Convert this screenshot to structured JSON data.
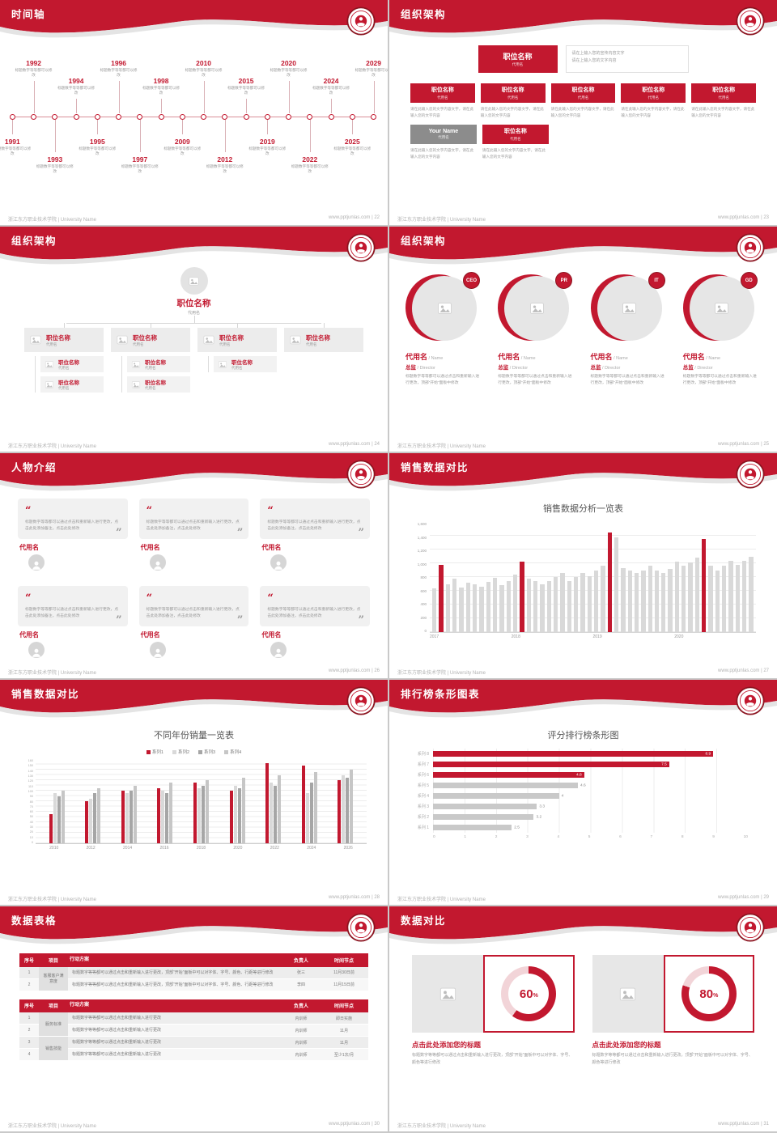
{
  "footer": {
    "left": "浙江东方职业技术学院 | University Name",
    "site": "www.pptjunlas.com",
    "sep": " | "
  },
  "theme": {
    "red": "#c2182f",
    "dark_red": "#8c1420",
    "gray_bar": "#c9c9c9",
    "light_gray": "#ececec"
  },
  "slides": {
    "timeline": {
      "title": "时间轴",
      "page": "22",
      "item_desc": "标题数字等等都可以修改",
      "items": [
        {
          "year": "1991",
          "side": "bottom",
          "far": false
        },
        {
          "year": "1992",
          "side": "top",
          "far": true
        },
        {
          "year": "1993",
          "side": "bottom",
          "far": true
        },
        {
          "year": "1994",
          "side": "top",
          "far": false
        },
        {
          "year": "1995",
          "side": "bottom",
          "far": false
        },
        {
          "year": "1996",
          "side": "top",
          "far": true
        },
        {
          "year": "1997",
          "side": "bottom",
          "far": true
        },
        {
          "year": "1998",
          "side": "top",
          "far": false
        },
        {
          "year": "2009",
          "side": "bottom",
          "far": false
        },
        {
          "year": "2010",
          "side": "top",
          "far": true
        },
        {
          "year": "2012",
          "side": "bottom",
          "far": true
        },
        {
          "year": "2015",
          "side": "top",
          "far": false
        },
        {
          "year": "2019",
          "side": "bottom",
          "far": false
        },
        {
          "year": "2020",
          "side": "top",
          "far": true
        },
        {
          "year": "2022",
          "side": "bottom",
          "far": true
        },
        {
          "year": "2024",
          "side": "top",
          "far": false
        },
        {
          "year": "2025",
          "side": "bottom",
          "far": false
        },
        {
          "year": "2029",
          "side": "top",
          "far": true
        }
      ]
    },
    "org_a": {
      "title": "组织架构",
      "page": "23",
      "head": {
        "title": "职位名称",
        "sub": "代用名"
      },
      "head_note": "请在上输入您的宣传内容文字\n请在上输入您的文字内容",
      "col_text": "请在此输入您的文字内容文字，请在此输入您的文字内容",
      "cols": [
        {
          "title": "职位名称",
          "sub": "代用名"
        },
        {
          "title": "职位名称",
          "sub": "代用名"
        },
        {
          "title": "职位名称",
          "sub": "代用名"
        },
        {
          "title": "职位名称",
          "sub": "代用名"
        },
        {
          "title": "职位名称",
          "sub": "代用名"
        }
      ],
      "extra": [
        {
          "title": "Your Name",
          "sub": "代用名",
          "variant": "gray"
        },
        {
          "title": "职位名称",
          "sub": "代用名",
          "variant": "red"
        }
      ]
    },
    "org_b": {
      "title": "组织架构",
      "page": "24",
      "root": {
        "title": "职位名称",
        "sub": "代用名"
      },
      "child_sub": "代用名",
      "boxes": [
        {
          "title": "职位名称",
          "sub": "代用名",
          "children": [
            "职位名称",
            "职位名称"
          ]
        },
        {
          "title": "职位名称",
          "sub": "代用名",
          "children": [
            "职位名称",
            "职位名称"
          ]
        },
        {
          "title": "职位名称",
          "sub": "代用名",
          "children": [
            "职位名称"
          ]
        },
        {
          "title": "职位名称",
          "sub": "代用名",
          "children": []
        }
      ]
    },
    "org_c": {
      "title": "组织架构",
      "page": "25",
      "desc": "标题数字等等都可以通过点击和重新输入进行更改，顶部“开始”面板中修改",
      "roles": [
        {
          "badge": "CEO",
          "name": "代用名",
          "name_en": " / Name",
          "role": "总监",
          "role_en": " / Director"
        },
        {
          "badge": "PR",
          "name": "代用名",
          "name_en": " / Name",
          "role": "总监",
          "role_en": " / Director"
        },
        {
          "badge": "IT",
          "name": "代用名",
          "name_en": " / Name",
          "role": "总监",
          "role_en": " / Director"
        },
        {
          "badge": "GD",
          "name": "代用名",
          "name_en": " / Name",
          "role": "总监",
          "role_en": " / Director"
        }
      ]
    },
    "people": {
      "title": "人物介绍",
      "page": "26",
      "quote": "标题数字等等都可以通过点击和重新输入进行更改，点击此处添加备注，点击此处修改",
      "cards": [
        {
          "name": "代用名"
        },
        {
          "name": "代用名"
        },
        {
          "name": "代用名"
        },
        {
          "name": "代用名"
        },
        {
          "name": "代用名"
        },
        {
          "name": "代用名"
        }
      ]
    },
    "sales_a": {
      "title": "销售数据对比",
      "page": "27",
      "chart_ref": 0
    },
    "sales_b": {
      "title": "销售数据对比",
      "page": "28",
      "chart_ref": 1
    },
    "ranking": {
      "title": "排行榜条形图表",
      "page": "29",
      "chart_ref": 2
    },
    "tables": {
      "title": "数据表格",
      "page": "30",
      "table1": {
        "columns": [
          "序号",
          "项目",
          "行动方案",
          "负责人",
          "时间节点"
        ],
        "rows": [
          {
            "no": "1",
            "item": "客服客户满意度",
            "item_span": 2,
            "plan": "标题数字等等都可以通过点击和重新输入进行更改，顶部“开始”面板中可以对字体、字号、颜色、行距等进行修改",
            "owner": "张三",
            "due": "11月30日前"
          },
          {
            "no": "2",
            "plan": "标题数字等等都可以通过点击和重新输入进行更改，顶部“开始”面板中可以对字体、字号、颜色、行距等进行修改",
            "owner": "李四",
            "due": "11月15日前"
          }
        ]
      },
      "table2": {
        "columns": [
          "序号",
          "项目",
          "行动方案",
          "负责人",
          "时间节点"
        ],
        "rows": [
          {
            "no": "1",
            "item": "服务标准",
            "item_span": 2,
            "plan": "标题数字等等都可以通过点击和重新输入进行更改",
            "owner": "内训师",
            "due": "即日实施"
          },
          {
            "no": "2",
            "plan": "标题数字等等都可以通过点击和重新输入进行更改",
            "owner": "内训师",
            "due": "11月"
          },
          {
            "no": "3",
            "item": "销售技能",
            "item_span": 2,
            "plan": "标题数字等等都可以通过点击和重新输入进行更改",
            "owner": "内训师",
            "due": "11月"
          },
          {
            "no": "4",
            "plan": "标题数字等等都可以通过点击和重新输入进行更改",
            "owner": "内训师",
            "due": "至少1次/月"
          }
        ]
      }
    },
    "compare": {
      "title": "数据对比",
      "page": "31",
      "panels": [
        {
          "percent": 60,
          "heading": "点击此处添加您的标题",
          "body": "标题数字等等都可以通过点击和重新输入进行更改，顶部“开始”面板中可以对字体、字号、颜色等进行修改"
        },
        {
          "percent": 80,
          "heading": "点击此处添加您的标题",
          "body": "标题数字等等都可以通过点击和重新输入进行更改，顶部“开始”面板中可以对字体、字号、颜色等进行修改"
        }
      ]
    }
  },
  "chart_data": [
    {
      "type": "bar",
      "title": "销售数据分析一览表",
      "x_ticks": [
        "2017",
        "2018",
        "2019",
        "2020"
      ],
      "values": [
        640,
        980,
        700,
        780,
        650,
        720,
        690,
        660,
        730,
        790,
        680,
        740,
        840,
        1020,
        780,
        740,
        690,
        740,
        800,
        860,
        740,
        800,
        860,
        810,
        900,
        960,
        1450,
        1380,
        930,
        900,
        860,
        900,
        960,
        900,
        860,
        920,
        1020,
        960,
        1010,
        1080,
        1350,
        960,
        900,
        960,
        1030,
        980,
        1040,
        1100
      ],
      "highlight_indices": [
        1,
        13,
        26,
        40
      ],
      "bar_color": "#d9d9d9",
      "highlight_color": "#c2182f",
      "ylim": [
        0,
        1600
      ],
      "ytick_step": 200,
      "grid": true
    },
    {
      "type": "bar",
      "title": "不同年份销量一览表",
      "categories": [
        "2010",
        "2012",
        "2014",
        "2016",
        "2018",
        "2020",
        "2022",
        "2024",
        "2026"
      ],
      "series": [
        {
          "name": "系列1",
          "color": "#c2182f",
          "values": [
            55,
            80,
            100,
            105,
            115,
            100,
            152,
            148,
            120
          ]
        },
        {
          "name": "系列2",
          "color": "#d9d9d9",
          "values": [
            95,
            85,
            95,
            100,
            105,
            110,
            115,
            95,
            130
          ]
        },
        {
          "name": "系列3",
          "color": "#a6a6a6",
          "values": [
            90,
            95,
            100,
            95,
            110,
            105,
            110,
            115,
            125
          ]
        },
        {
          "name": "系列4",
          "color": "#c6c6c6",
          "values": [
            100,
            105,
            110,
            115,
            120,
            125,
            130,
            135,
            140
          ]
        }
      ],
      "ylim": [
        0,
        160
      ],
      "ytick_step": 10,
      "legend_position": "top",
      "grid": true
    },
    {
      "type": "bar",
      "orientation": "horizontal",
      "title": "评分排行榜条形图",
      "categories": [
        "系列 8",
        "系列 7",
        "系列 6",
        "系列 5",
        "系列 4",
        "系列 3",
        "系列 2",
        "系列 1"
      ],
      "values": [
        8.9,
        7.5,
        4.8,
        4.6,
        4,
        3.3,
        3.2,
        2.5
      ],
      "colors": [
        "#c2182f",
        "#c2182f",
        "#c2182f",
        "#c9c9c9",
        "#c9c9c9",
        "#c9c9c9",
        "#c9c9c9",
        "#c9c9c9"
      ],
      "xlim": [
        0,
        10
      ],
      "xtick_step": 1,
      "grid": true
    },
    {
      "type": "pie",
      "title": "数据对比",
      "items": [
        {
          "label": "点击此处添加您的标题",
          "value": 60
        },
        {
          "label": "点击此处添加您的标题",
          "value": 80
        }
      ],
      "track_color": "#f2d4d8",
      "value_color": "#c2182f"
    }
  ]
}
